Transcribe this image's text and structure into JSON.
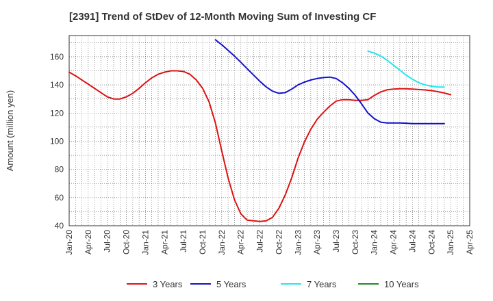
{
  "chart_data": {
    "type": "line",
    "title": "[2391]  Trend of StDev of 12-Month Moving Sum of Investing CF",
    "ylabel": "Amount (million yen)",
    "xlabel": "",
    "ylim": [
      40,
      175
    ],
    "yticks": [
      40,
      60,
      80,
      100,
      120,
      140,
      160
    ],
    "xticks": [
      "Jan-20",
      "Apr-20",
      "Jul-20",
      "Oct-20",
      "Jan-21",
      "Apr-21",
      "Jul-21",
      "Oct-21",
      "Jan-22",
      "Apr-22",
      "Jul-22",
      "Oct-22",
      "Jan-23",
      "Apr-23",
      "Jul-23",
      "Oct-23",
      "Jan-24",
      "Apr-24",
      "Jul-24",
      "Oct-24",
      "Jan-25",
      "Apr-25"
    ],
    "x_start": "2020-01",
    "grid": true,
    "legend_position": "bottom",
    "series": [
      {
        "name": "3 Years",
        "color": "#dd1111",
        "start": "2020-01",
        "values": [
          149,
          146.5,
          143.5,
          140.5,
          137.5,
          134.5,
          131.5,
          130,
          130,
          131.5,
          134,
          137.5,
          141.5,
          145,
          147.5,
          149,
          150,
          150,
          149.5,
          147.5,
          143.5,
          137.5,
          128,
          113,
          93,
          74,
          58.5,
          48.5,
          44,
          43.5,
          43,
          43.5,
          46,
          52.5,
          62,
          74,
          88,
          99.5,
          108.5,
          115.5,
          120.5,
          125,
          128.5,
          129.5,
          129.5,
          129,
          129,
          129.5,
          132.5,
          135,
          136.5,
          137,
          137.2,
          137.2,
          137,
          136.7,
          136.4,
          135.9,
          135.2,
          134.2,
          133
        ]
      },
      {
        "name": "5 Years",
        "color": "#1111cc",
        "start": "2021-12",
        "values": [
          172,
          168.5,
          164.5,
          160.5,
          156,
          151.5,
          147,
          142.5,
          138.5,
          135.5,
          134,
          134.5,
          137,
          140,
          142,
          143.5,
          144.5,
          145.2,
          145.5,
          144.5,
          141.5,
          137.5,
          132.5,
          126.5,
          120,
          116,
          113.5,
          113,
          113,
          113,
          112.8,
          112.5,
          112.5,
          112.5,
          112.5,
          112.5,
          112.5
        ]
      },
      {
        "name": "7 Years",
        "color": "#22e5f0",
        "start": "2023-12",
        "values": [
          164,
          162.5,
          160.5,
          157.5,
          154,
          150.5,
          147,
          144,
          141.5,
          140,
          139,
          138.5,
          138.5
        ]
      },
      {
        "name": "10 Years",
        "color": "#228822",
        "start": "2020-01",
        "values": []
      }
    ]
  }
}
